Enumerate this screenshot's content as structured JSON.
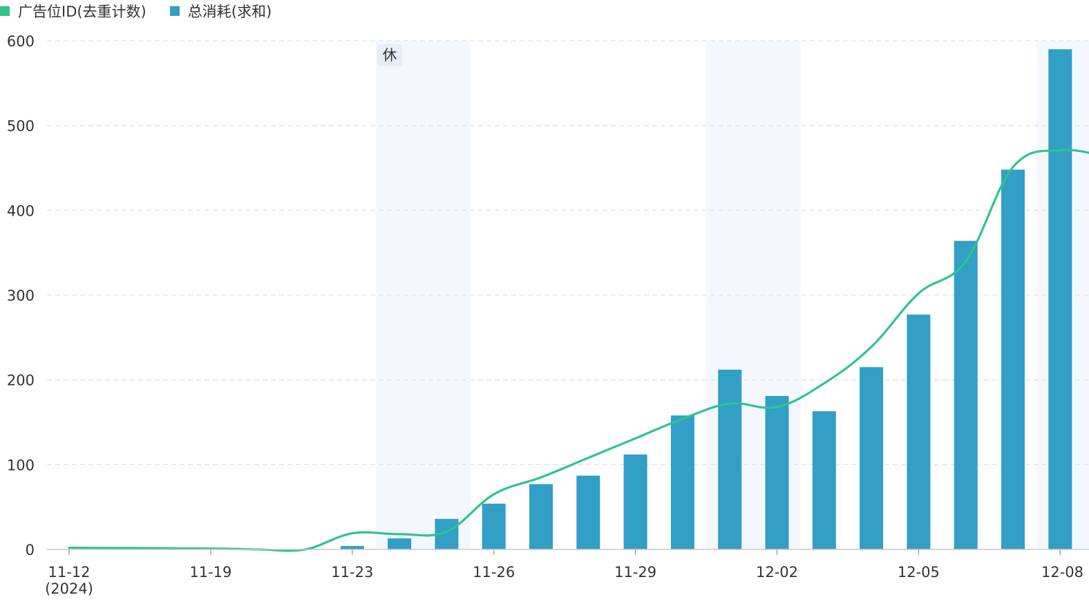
{
  "legend": {
    "line_label": "广告位ID(去重计数)",
    "bar_label": "总消耗(求和)"
  },
  "holiday_label": "休",
  "colors": {
    "line": "#2fc38b",
    "bar": "#319fc6",
    "holiday_band": "#f4f8fe",
    "grid": "#e3e3e3"
  },
  "chart_data": {
    "type": "bar",
    "x_tick_labels": [
      "11-12\n(2024)",
      "11-19",
      "11-23",
      "11-26",
      "11-29",
      "12-02",
      "12-05",
      "12-08"
    ],
    "y_ticks": [
      0,
      100,
      200,
      300,
      400,
      500,
      600
    ],
    "ylim": [
      0,
      600
    ],
    "grid": true,
    "legend_position": "top-left",
    "holiday_periods": [
      [
        "11-23",
        "11-24"
      ],
      [
        "11-30",
        "12-01"
      ],
      [
        "12-07",
        "12-08"
      ]
    ],
    "categories": [
      "11-12",
      "11-19",
      "11-20",
      "11-21",
      "11-22",
      "11-23",
      "11-24",
      "11-25",
      "11-26",
      "11-27",
      "11-28",
      "11-29",
      "11-30",
      "12-01",
      "12-02",
      "12-03",
      "12-04",
      "12-05",
      "12-06",
      "12-07",
      "12-08"
    ],
    "series": [
      {
        "name": "总消耗(求和)",
        "type": "bar",
        "values": [
          null,
          null,
          null,
          null,
          4,
          13,
          36,
          54,
          77,
          87,
          112,
          158,
          212,
          181,
          163,
          215,
          277,
          364,
          448,
          590,
          589
        ]
      },
      {
        "name": "广告位ID(去重计数)",
        "type": "line",
        "smooth": true,
        "values": [
          2,
          1,
          0,
          0,
          19,
          18,
          21,
          65,
          85,
          108,
          131,
          154,
          172,
          168,
          196,
          239,
          302,
          340,
          451,
          471,
          463
        ]
      }
    ]
  }
}
